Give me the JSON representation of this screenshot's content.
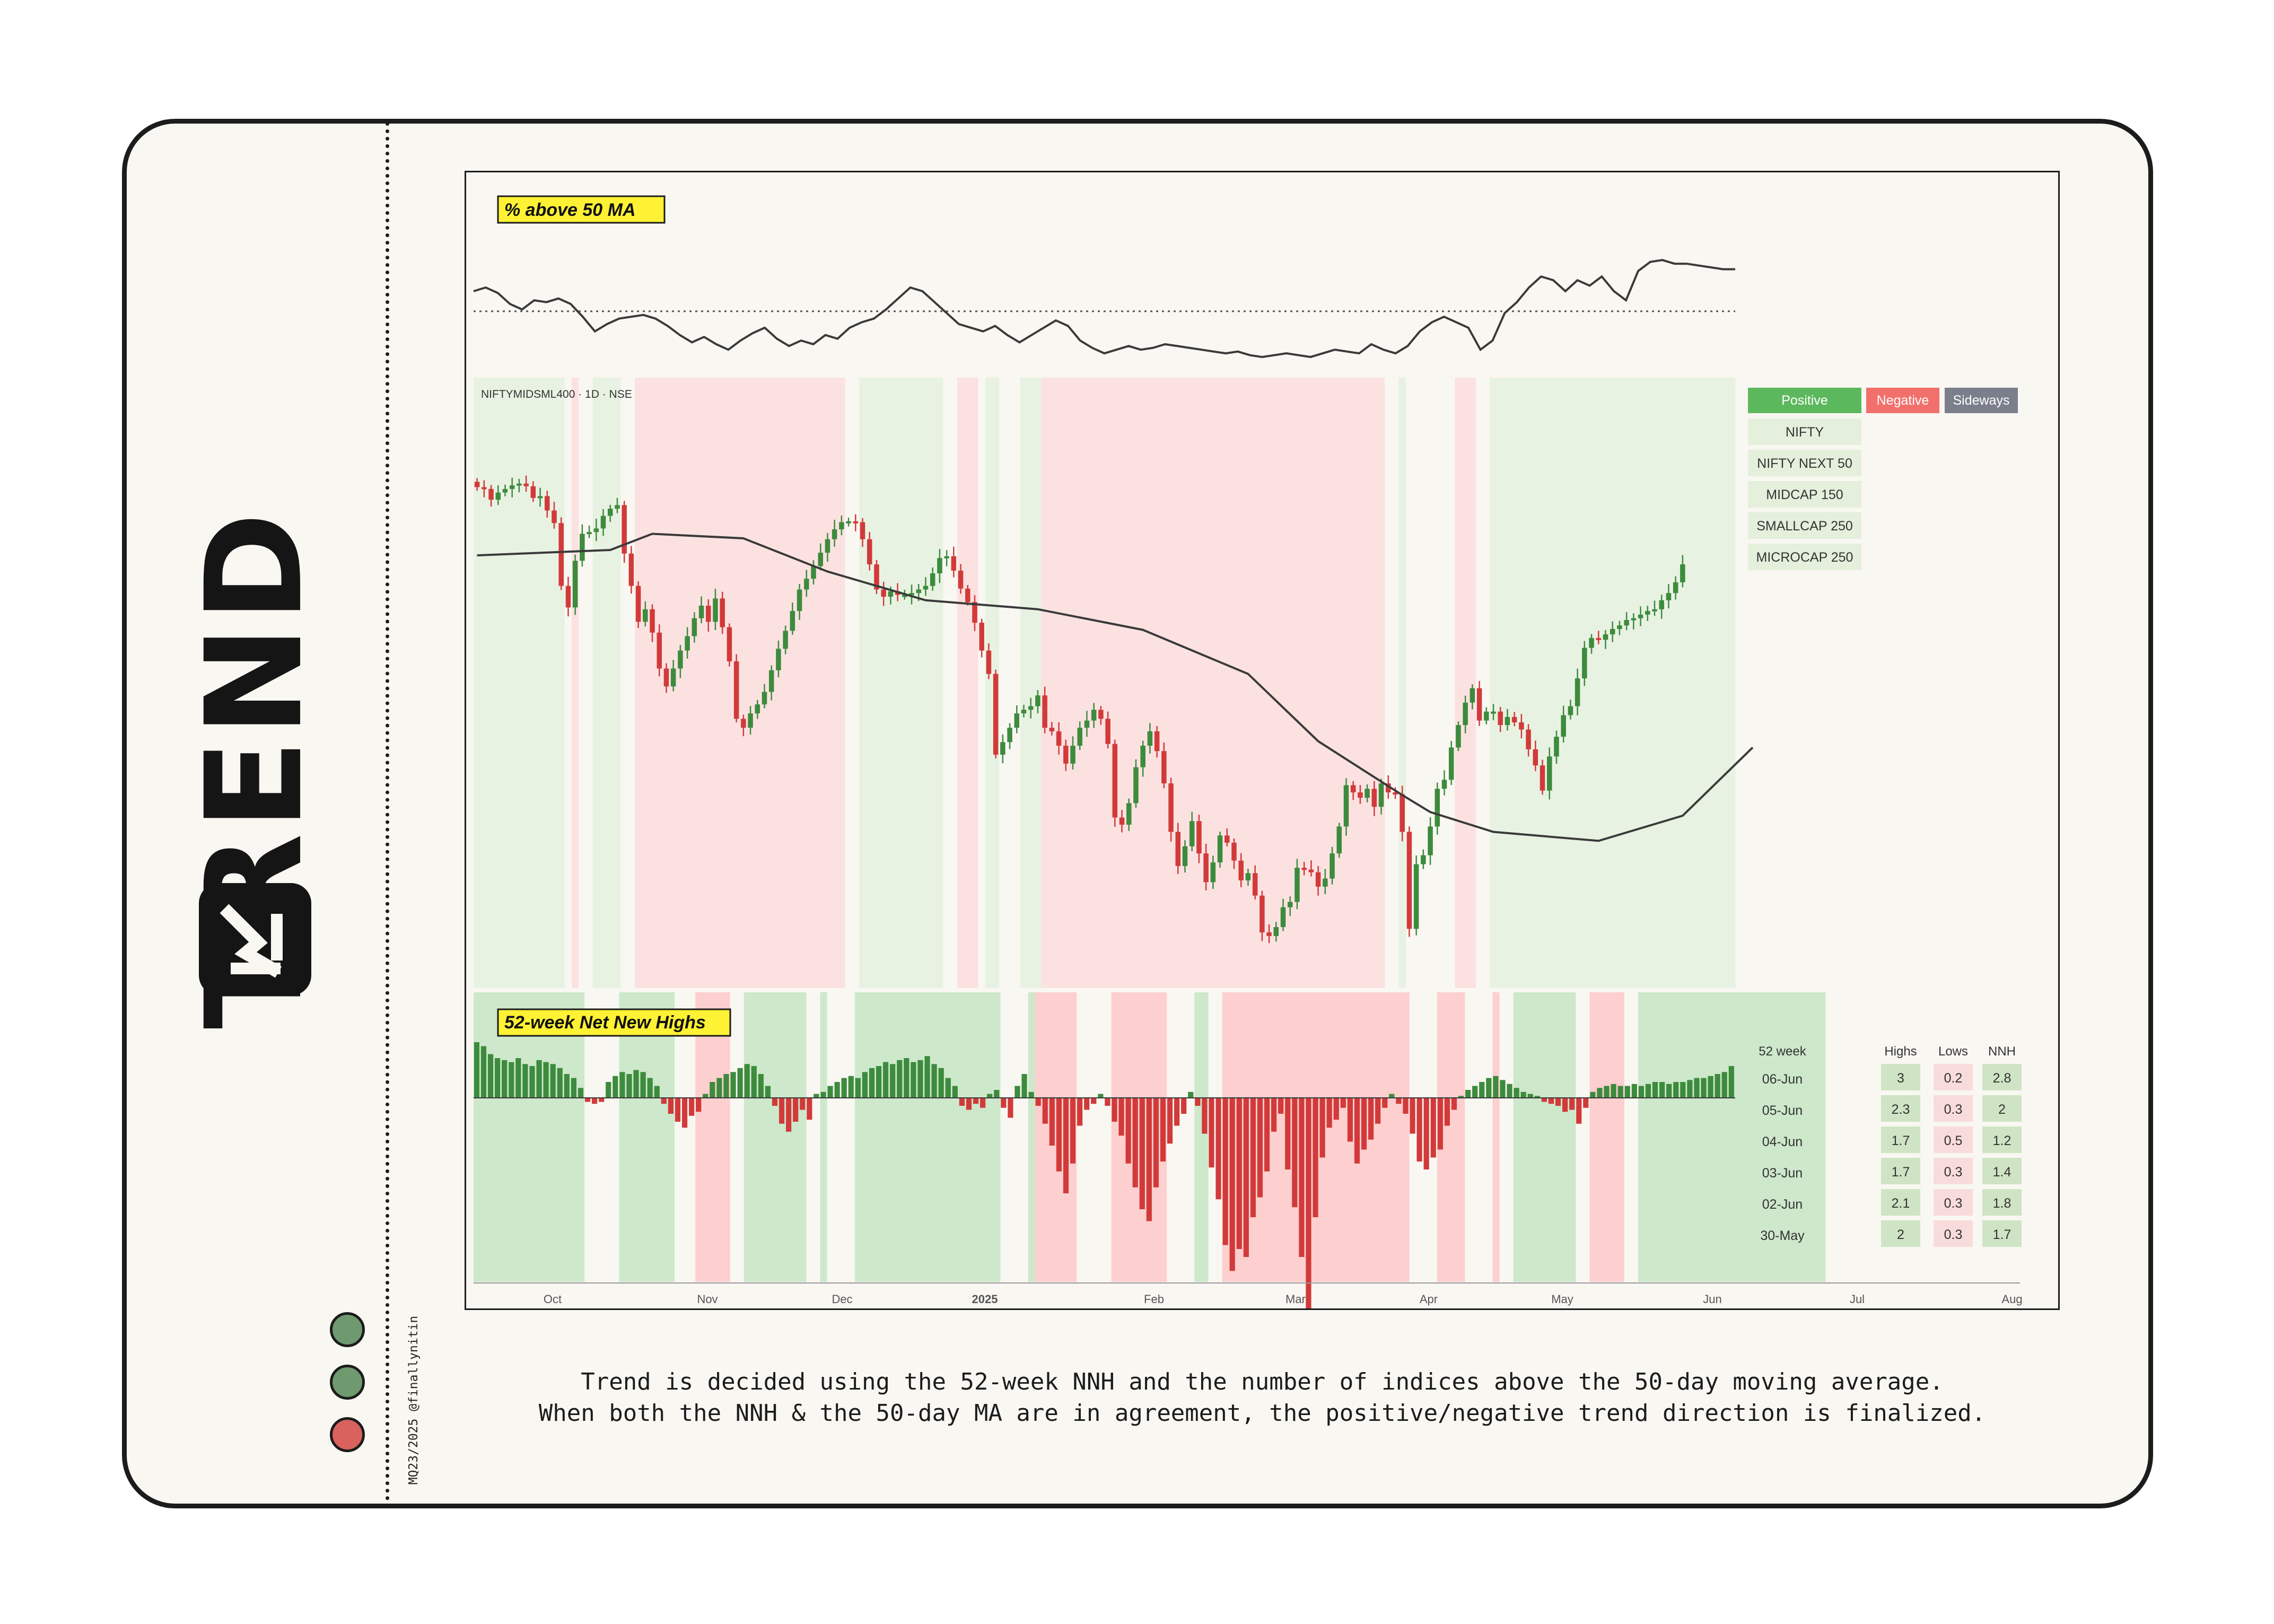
{
  "brand": {
    "title": "TREND",
    "logo_icon": "trend-arrow-icon",
    "credit": "MQ23/2025 @finallynitin",
    "status_dots": [
      "#6f9a6f",
      "#6f9a6f",
      "#d9625e"
    ]
  },
  "caption": {
    "line1": "Trend is decided using the 52-week NNH and the number of indices above the 50-day moving average.",
    "line2": "When both the NNH & the 50-day MA are in agreement, the positive/negative trend direction is finalized."
  },
  "colors": {
    "positive": "#5cb85c",
    "negative": "#f2706c",
    "sideways": "#7b7f8c",
    "up_candle": "#3d8b3d",
    "down_candle": "#d23a3a",
    "highlight": "#fff234"
  },
  "chart_data": [
    {
      "type": "line",
      "title": "% above 50 MA",
      "x_range": [
        "2024-09-19",
        "2025-06-06"
      ],
      "grid": false,
      "reference_line": "dotted",
      "values": [
        62,
        64,
        61,
        55,
        52,
        57,
        56,
        58,
        55,
        48,
        40,
        44,
        47,
        48,
        49,
        47,
        43,
        38,
        34,
        37,
        33,
        30,
        35,
        39,
        42,
        36,
        32,
        35,
        33,
        38,
        36,
        42,
        45,
        47,
        52,
        58,
        64,
        62,
        56,
        50,
        44,
        42,
        40,
        43,
        38,
        34,
        38,
        42,
        46,
        43,
        35,
        31,
        28,
        30,
        32,
        30,
        31,
        33,
        32,
        31,
        30,
        29,
        28,
        29,
        27,
        26,
        27,
        28,
        27,
        26,
        28,
        30,
        29,
        28,
        33,
        30,
        28,
        32,
        40,
        45,
        48,
        45,
        42,
        30,
        35,
        50,
        56,
        64,
        70,
        68,
        62,
        68,
        65,
        70,
        62,
        57,
        73,
        78,
        79,
        77,
        77,
        76,
        75,
        74,
        74
      ],
      "reference_value": 51
    },
    {
      "type": "candlestick",
      "title": "NIFTYMIDSML400 · 1D · NSE",
      "x_ticks": [
        "Oct",
        "Nov",
        "Dec",
        "2025",
        "Feb",
        "Mar",
        "Apr",
        "May",
        "Jun",
        "Jul",
        "Aug"
      ],
      "x_range": [
        "2024-09-19",
        "2025-08-05"
      ],
      "closes": [
        20580,
        20560,
        20440,
        20520,
        20560,
        20600,
        20620,
        20590,
        20460,
        20480,
        20320,
        20180,
        19480,
        19240,
        19760,
        20060,
        20080,
        20120,
        20260,
        20340,
        20380,
        19840,
        19480,
        19080,
        19220,
        18960,
        18560,
        18360,
        18560,
        18760,
        18920,
        19120,
        19260,
        19080,
        19340,
        19020,
        18640,
        18000,
        17900,
        18060,
        18160,
        18300,
        18540,
        18780,
        18980,
        19200,
        19440,
        19560,
        19700,
        19850,
        20000,
        20110,
        20190,
        20200,
        20190,
        20000,
        19720,
        19440,
        19360,
        19420,
        19380,
        19380,
        19400,
        19440,
        19480,
        19620,
        19790,
        19810,
        19650,
        19450,
        19300,
        19070,
        18760,
        18500,
        17600,
        17740,
        17900,
        18060,
        18100,
        18140,
        18260,
        17900,
        17860,
        17700,
        17500,
        17700,
        17900,
        17980,
        18100,
        18000,
        17720,
        16900,
        16820,
        17060,
        17460,
        17700,
        17860,
        17640,
        17280,
        16740,
        16360,
        16580,
        16860,
        16500,
        16180,
        16400,
        16700,
        16620,
        16420,
        16200,
        16280,
        16030,
        15620,
        15580,
        15680,
        15900,
        15960,
        16340,
        16320,
        16290,
        16130,
        16220,
        16500,
        16800,
        17260,
        17180,
        17120,
        17220,
        17020,
        17280,
        17180,
        17160,
        16740,
        15660,
        16380,
        16480,
        16800,
        17220,
        17320,
        17680,
        17930,
        18180,
        18340,
        17980,
        18080,
        18080,
        17930,
        18020,
        17960,
        17880,
        17660,
        17480,
        17200,
        17580,
        17800,
        18040,
        18140,
        18450,
        18790,
        18900,
        18880,
        18940,
        19000,
        19040,
        19100,
        19120,
        19160,
        19200,
        19220,
        19320,
        19400,
        19520,
        19720
      ],
      "ma50_polyline": [
        [
          0,
          19820
        ],
        [
          19,
          19880
        ],
        [
          25,
          20060
        ],
        [
          38,
          20010
        ],
        [
          50,
          19640
        ],
        [
          64,
          19320
        ],
        [
          80,
          19220
        ],
        [
          95,
          18990
        ],
        [
          110,
          18500
        ],
        [
          120,
          17750
        ],
        [
          132,
          17150
        ],
        [
          136,
          16960
        ],
        [
          145,
          16740
        ],
        [
          160,
          16640
        ],
        [
          172,
          16920
        ],
        [
          182,
          17680
        ]
      ],
      "series": [
        {
          "name": "NIFTYMIDSML400",
          "type": "candlestick"
        },
        {
          "name": "50-day MA",
          "type": "line"
        }
      ],
      "legend": {
        "headers": [
          "Positive",
          "Negative",
          "Sideways"
        ],
        "rows": [
          "NIFTY",
          "NIFTY NEXT 50",
          "MIDCAP 150",
          "SMALLCAP 250",
          "MICROCAP 250"
        ]
      },
      "regime_bands": [
        {
          "from": 0,
          "to": 13,
          "state": "positive"
        },
        {
          "from": 13,
          "to": 14,
          "state": "sideways"
        },
        {
          "from": 14,
          "to": 15,
          "state": "negative"
        },
        {
          "from": 15,
          "to": 17,
          "state": "sideways"
        },
        {
          "from": 17,
          "to": 21,
          "state": "positive"
        },
        {
          "from": 21,
          "to": 23,
          "state": "sideways"
        },
        {
          "from": 23,
          "to": 53,
          "state": "negative"
        },
        {
          "from": 53,
          "to": 55,
          "state": "sideways"
        },
        {
          "from": 55,
          "to": 67,
          "state": "positive"
        },
        {
          "from": 67,
          "to": 69,
          "state": "sideways"
        },
        {
          "from": 69,
          "to": 72,
          "state": "negative"
        },
        {
          "from": 72,
          "to": 73,
          "state": "sideways"
        },
        {
          "from": 73,
          "to": 75,
          "state": "positive"
        },
        {
          "from": 75,
          "to": 78,
          "state": "sideways"
        },
        {
          "from": 78,
          "to": 81,
          "state": "positive"
        },
        {
          "from": 81,
          "to": 130,
          "state": "negative"
        },
        {
          "from": 130,
          "to": 132,
          "state": "sideways"
        },
        {
          "from": 132,
          "to": 133,
          "state": "positive"
        },
        {
          "from": 133,
          "to": 140,
          "state": "sideways"
        },
        {
          "from": 140,
          "to": 143,
          "state": "negative"
        },
        {
          "from": 143,
          "to": 145,
          "state": "sideways"
        },
        {
          "from": 145,
          "to": 180,
          "state": "positive"
        }
      ]
    },
    {
      "type": "bar",
      "title": "52-week Net New Highs",
      "x_ticks": [
        "Oct",
        "Nov",
        "Dec",
        "2025",
        "Feb",
        "Mar",
        "Apr",
        "May",
        "Jun",
        "Jul",
        "Aug"
      ],
      "values": [
        2.8,
        2.6,
        2.2,
        2.0,
        1.9,
        1.8,
        2.0,
        1.7,
        1.6,
        1.9,
        1.8,
        1.7,
        1.5,
        1.2,
        1.0,
        0.5,
        -0.2,
        -0.3,
        -0.2,
        0.8,
        1.1,
        1.3,
        1.2,
        1.4,
        1.3,
        1.0,
        0.6,
        -0.3,
        -0.8,
        -1.2,
        -1.5,
        -0.9,
        -0.7,
        0.2,
        0.8,
        1.0,
        1.2,
        1.3,
        1.5,
        1.7,
        1.6,
        1.2,
        0.6,
        -0.4,
        -1.3,
        -1.7,
        -1.2,
        -0.6,
        -1.1,
        0.2,
        0.3,
        0.6,
        0.8,
        1.0,
        1.1,
        1.0,
        1.3,
        1.5,
        1.6,
        1.8,
        1.7,
        1.9,
        2.0,
        1.8,
        1.9,
        2.1,
        1.7,
        1.5,
        1.0,
        0.6,
        -0.4,
        -0.6,
        -0.3,
        -0.5,
        0.2,
        0.4,
        -0.5,
        -1.0,
        0.6,
        1.2,
        0.3,
        -0.4,
        -1.3,
        -2.4,
        -3.7,
        -4.8,
        -3.3,
        -1.4,
        -0.6,
        -0.3,
        0.2,
        -0.4,
        -1.2,
        -1.9,
        -3.3,
        -4.5,
        -5.6,
        -6.2,
        -4.5,
        -3.2,
        -2.3,
        -1.4,
        -0.8,
        0.3,
        -0.4,
        -1.8,
        -3.5,
        -5.1,
        -7.4,
        -8.7,
        -7.6,
        -8.0,
        -6.0,
        -5.0,
        -3.7,
        -1.7,
        -0.8,
        -3.6,
        -5.5,
        -8.0,
        -11.0,
        -6.0,
        -3.0,
        -1.5,
        -1.1,
        -0.5,
        -2.2,
        -3.3,
        -2.6,
        -2.1,
        -1.3,
        -0.5,
        0.2,
        -0.3,
        -0.8,
        -1.8,
        -3.2,
        -3.6,
        -3.0,
        -2.6,
        -1.4,
        -0.6,
        0.1,
        0.4,
        0.6,
        0.8,
        1.0,
        1.1,
        0.9,
        0.7,
        0.5,
        0.3,
        0.2,
        0.1,
        -0.2,
        -0.3,
        -0.4,
        -0.7,
        -0.6,
        -1.3,
        -0.5,
        0.3,
        0.5,
        0.6,
        0.7,
        0.6,
        0.6,
        0.7,
        0.6,
        0.7,
        0.8,
        0.8,
        0.7,
        0.8,
        0.8,
        0.9,
        1.0,
        1.0,
        1.1,
        1.2,
        1.3,
        1.6
      ],
      "regime_bands": [
        {
          "from": 0,
          "to": 16,
          "state": "positive"
        },
        {
          "from": 16,
          "to": 21,
          "state": "sideways"
        },
        {
          "from": 21,
          "to": 29,
          "state": "positive"
        },
        {
          "from": 29,
          "to": 32,
          "state": "sideways"
        },
        {
          "from": 32,
          "to": 37,
          "state": "negative"
        },
        {
          "from": 37,
          "to": 39,
          "state": "sideways"
        },
        {
          "from": 39,
          "to": 48,
          "state": "positive"
        },
        {
          "from": 48,
          "to": 50,
          "state": "sideways"
        },
        {
          "from": 50,
          "to": 51,
          "state": "positive"
        },
        {
          "from": 51,
          "to": 55,
          "state": "sideways"
        },
        {
          "from": 55,
          "to": 76,
          "state": "positive"
        },
        {
          "from": 76,
          "to": 80,
          "state": "sideways"
        },
        {
          "from": 80,
          "to": 81,
          "state": "positive"
        },
        {
          "from": 81,
          "to": 87,
          "state": "negative"
        },
        {
          "from": 87,
          "to": 92,
          "state": "sideways"
        },
        {
          "from": 92,
          "to": 100,
          "state": "negative"
        },
        {
          "from": 100,
          "to": 104,
          "state": "sideways"
        },
        {
          "from": 104,
          "to": 106,
          "state": "positive"
        },
        {
          "from": 106,
          "to": 108,
          "state": "sideways"
        },
        {
          "from": 108,
          "to": 135,
          "state": "negative"
        },
        {
          "from": 135,
          "to": 139,
          "state": "sideways"
        },
        {
          "from": 139,
          "to": 143,
          "state": "negative"
        },
        {
          "from": 143,
          "to": 147,
          "state": "sideways"
        },
        {
          "from": 147,
          "to": 148,
          "state": "negative"
        },
        {
          "from": 148,
          "to": 150,
          "state": "sideways"
        },
        {
          "from": 150,
          "to": 159,
          "state": "positive"
        },
        {
          "from": 159,
          "to": 161,
          "state": "sideways"
        },
        {
          "from": 161,
          "to": 166,
          "state": "negative"
        },
        {
          "from": 166,
          "to": 168,
          "state": "sideways"
        },
        {
          "from": 168,
          "to": 195,
          "state": "positive"
        }
      ],
      "table": {
        "headers": [
          "52 week",
          "Highs",
          "Lows",
          "NNH"
        ],
        "rows": [
          [
            "06-Jun",
            "3",
            "0.2",
            "2.8"
          ],
          [
            "05-Jun",
            "2.3",
            "0.3",
            "2"
          ],
          [
            "04-Jun",
            "1.7",
            "0.5",
            "1.2"
          ],
          [
            "03-Jun",
            "1.7",
            "0.3",
            "1.4"
          ],
          [
            "02-Jun",
            "2.1",
            "0.3",
            "1.8"
          ],
          [
            "30-May",
            "2",
            "0.3",
            "1.7"
          ]
        ]
      }
    }
  ]
}
